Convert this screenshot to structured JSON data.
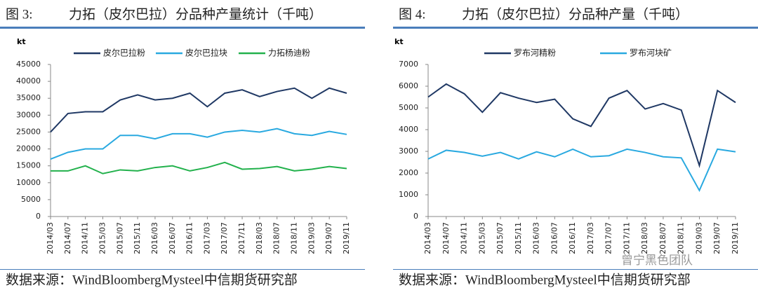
{
  "chart_data": [
    {
      "type": "line",
      "figure_label": "图 3:",
      "title": "力拓（皮尔巴拉）分品种产量统计（千吨）",
      "y_label": "kt",
      "categories": [
        "2014/03",
        "2014/07",
        "2014/11",
        "2015/03",
        "2015/07",
        "2015/11",
        "2016/03",
        "2016/07",
        "2016/11",
        "2017/03",
        "2017/07",
        "2017/11",
        "2018/03",
        "2018/07",
        "2018/11",
        "2019/03",
        "2019/07",
        "2019/11"
      ],
      "series": [
        {
          "name": "皮尔巴拉粉",
          "color": "#1f3864",
          "values": [
            25000,
            30500,
            31000,
            31000,
            34500,
            36000,
            34500,
            35000,
            36500,
            32500,
            36500,
            37500,
            35500,
            37000,
            38000,
            35000,
            38000,
            36500
          ]
        },
        {
          "name": "皮尔巴拉块",
          "color": "#29a9e0",
          "values": [
            17000,
            19000,
            20000,
            20000,
            24000,
            24000,
            23000,
            24500,
            24500,
            23500,
            25000,
            25500,
            25000,
            26000,
            24500,
            24000,
            25200,
            24300
          ]
        },
        {
          "name": "力拓杨迪粉",
          "color": "#22b14c",
          "values": [
            13500,
            13500,
            15000,
            12700,
            13800,
            13500,
            14500,
            15000,
            13500,
            14500,
            16000,
            14000,
            14200,
            14800,
            13500,
            14000,
            14800,
            14200
          ]
        }
      ],
      "ylim": [
        0,
        45000
      ],
      "yticks": [
        0,
        5000,
        10000,
        15000,
        20000,
        25000,
        30000,
        35000,
        40000,
        45000
      ],
      "source": "数据来源：WindBloombergMysteel中信期货研究部"
    },
    {
      "type": "line",
      "figure_label": "图 4:",
      "title": "力拓（皮尔巴拉）分品种产量（千吨）",
      "y_label": "kt",
      "categories": [
        "2014/03",
        "2014/07",
        "2014/11",
        "2015/03",
        "2015/07",
        "2015/11",
        "2016/03",
        "2016/07",
        "2016/11",
        "2017/03",
        "2017/07",
        "2017/11",
        "2018/03",
        "2018/07",
        "2018/11",
        "2019/03",
        "2019/07",
        "2019/11"
      ],
      "series": [
        {
          "name": "罗布河精粉",
          "color": "#1f3864",
          "values": [
            5500,
            6100,
            5650,
            4800,
            5700,
            5450,
            5250,
            5400,
            4500,
            4150,
            5450,
            5800,
            4950,
            5200,
            4900,
            2350,
            5800,
            5250
          ]
        },
        {
          "name": "罗布河块矿",
          "color": "#29a9e0",
          "values": [
            2650,
            3050,
            2950,
            2780,
            2950,
            2650,
            2980,
            2750,
            3100,
            2750,
            2800,
            3100,
            2950,
            2750,
            2700,
            1200,
            3100,
            2980
          ]
        }
      ],
      "ylim": [
        0,
        7000
      ],
      "yticks": [
        0,
        1000,
        2000,
        3000,
        4000,
        5000,
        6000,
        7000
      ],
      "source": "数据来源：WindBloombergMysteel中信期货研究部",
      "watermark": "曾宁黑色团队"
    }
  ]
}
